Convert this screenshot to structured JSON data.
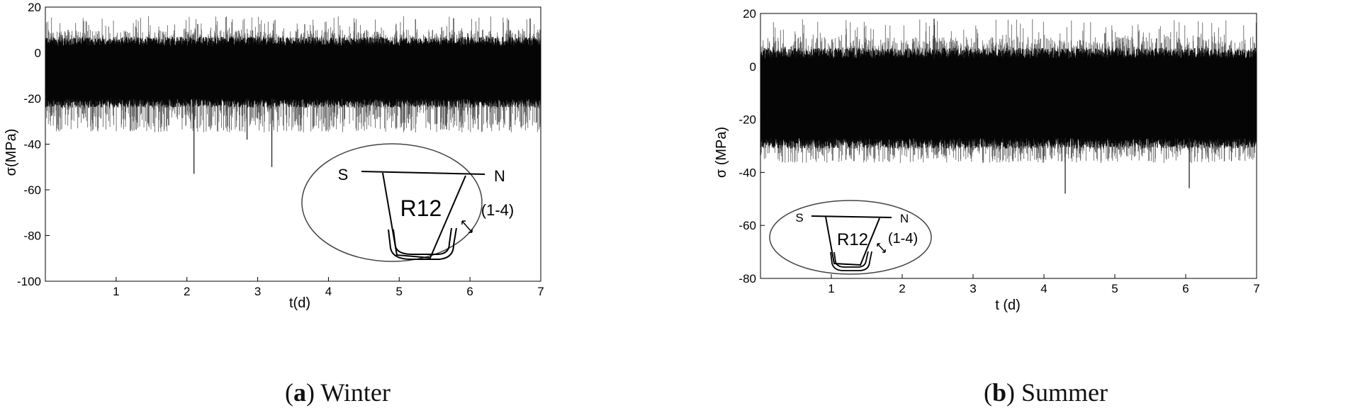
{
  "chart_data": [
    {
      "type": "line",
      "panel": "a",
      "caption_letter": "a",
      "caption_text": "Winter",
      "xlabel": "t(d)",
      "ylabel": "σ(MPa)",
      "xlim": [
        0,
        7
      ],
      "ylim": [
        -100,
        20
      ],
      "x_ticks": [
        1,
        2,
        3,
        4,
        5,
        6,
        7
      ],
      "y_ticks": [
        20,
        0,
        -20,
        -40,
        -60,
        -80,
        -100
      ],
      "grid": false,
      "series": [
        {
          "band_center": -7,
          "band_lower": -20,
          "band_upper": 3,
          "peak_max": 16,
          "peak_min": -53,
          "notable_spikes": [
            {
              "x": 2.1,
              "y": -53
            },
            {
              "x": 2.85,
              "y": -38
            },
            {
              "x": 3.2,
              "y": -50
            },
            {
              "x": 6.85,
              "y": 15
            }
          ]
        }
      ],
      "inset": {
        "labels": {
          "left": "S",
          "right": "N",
          "center": "R12",
          "location": "(1-4)"
        }
      }
    },
    {
      "type": "line",
      "panel": "b",
      "caption_letter": "b",
      "caption_text": "Summer",
      "xlabel": "t (d)",
      "ylabel": "σ (MPa)",
      "xlim": [
        0,
        7
      ],
      "ylim": [
        -80,
        20
      ],
      "x_ticks": [
        1,
        2,
        3,
        4,
        5,
        6,
        7
      ],
      "y_ticks": [
        20,
        0,
        -20,
        -40,
        -60,
        -80
      ],
      "grid": false,
      "series": [
        {
          "band_center": -10,
          "band_lower": -27,
          "band_upper": 3,
          "peak_max": 18,
          "peak_min": -48,
          "notable_spikes": [
            {
              "x": 4.3,
              "y": -48
            },
            {
              "x": 6.05,
              "y": -46
            },
            {
              "x": 2.45,
              "y": 18
            }
          ]
        }
      ],
      "inset": {
        "labels": {
          "left": "S",
          "right": "N",
          "center": "R12",
          "location": "(1-4)"
        }
      }
    }
  ]
}
